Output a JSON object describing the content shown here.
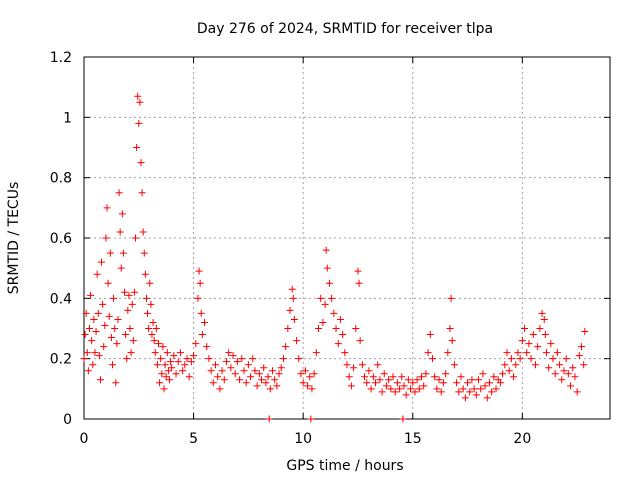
{
  "chart_data": {
    "type": "scatter",
    "title": "Day 276 of 2024, SRMTID for receiver tlpa",
    "xlabel": "GPS time / hours",
    "ylabel": "SRMTID / TECUs",
    "xlim": [
      0,
      24
    ],
    "ylim": [
      0,
      1.2
    ],
    "x_ticks": [
      0,
      5,
      10,
      15,
      20
    ],
    "x_tick_labels": [
      "0",
      "5",
      "10",
      "15",
      "20"
    ],
    "y_ticks": [
      0,
      0.2,
      0.4,
      0.6,
      0.8,
      1.0,
      1.2
    ],
    "y_tick_labels": [
      "0",
      "0.2",
      "0.4",
      "0.6",
      "0.8",
      "1",
      "1.2"
    ],
    "grid": true,
    "marker": "+",
    "color": "#ff0000",
    "series": [
      {
        "name": "SRMTID",
        "points": [
          [
            0.0,
            0.2
          ],
          [
            0.05,
            0.28
          ],
          [
            0.1,
            0.35
          ],
          [
            0.15,
            0.22
          ],
          [
            0.2,
            0.16
          ],
          [
            0.25,
            0.3
          ],
          [
            0.3,
            0.41
          ],
          [
            0.35,
            0.26
          ],
          [
            0.4,
            0.18
          ],
          [
            0.45,
            0.33
          ],
          [
            0.5,
            0.22
          ],
          [
            0.55,
            0.29
          ],
          [
            0.6,
            0.48
          ],
          [
            0.65,
            0.35
          ],
          [
            0.7,
            0.21
          ],
          [
            0.75,
            0.13
          ],
          [
            0.8,
            0.52
          ],
          [
            0.85,
            0.38
          ],
          [
            0.9,
            0.24
          ],
          [
            0.95,
            0.31
          ],
          [
            1.0,
            0.6
          ],
          [
            1.05,
            0.7
          ],
          [
            1.1,
            0.45
          ],
          [
            1.15,
            0.34
          ],
          [
            1.2,
            0.55
          ],
          [
            1.25,
            0.27
          ],
          [
            1.3,
            0.18
          ],
          [
            1.35,
            0.4
          ],
          [
            1.4,
            0.3
          ],
          [
            1.45,
            0.12
          ],
          [
            1.5,
            0.25
          ],
          [
            1.55,
            0.33
          ],
          [
            1.6,
            0.75
          ],
          [
            1.65,
            0.62
          ],
          [
            1.7,
            0.5
          ],
          [
            1.75,
            0.68
          ],
          [
            1.8,
            0.55
          ],
          [
            1.85,
            0.42
          ],
          [
            1.9,
            0.28
          ],
          [
            1.95,
            0.2
          ],
          [
            2.0,
            0.36
          ],
          [
            2.05,
            0.41
          ],
          [
            2.1,
            0.3
          ],
          [
            2.15,
            0.22
          ],
          [
            2.2,
            0.38
          ],
          [
            2.25,
            0.26
          ],
          [
            2.3,
            0.42
          ],
          [
            2.35,
            0.6
          ],
          [
            2.4,
            0.9
          ],
          [
            2.45,
            1.07
          ],
          [
            2.5,
            0.98
          ],
          [
            2.55,
            1.05
          ],
          [
            2.6,
            0.85
          ],
          [
            2.65,
            0.75
          ],
          [
            2.7,
            0.62
          ],
          [
            2.75,
            0.55
          ],
          [
            2.8,
            0.48
          ],
          [
            2.85,
            0.4
          ],
          [
            2.9,
            0.35
          ],
          [
            2.95,
            0.3
          ],
          [
            3.0,
            0.45
          ],
          [
            3.05,
            0.38
          ],
          [
            3.1,
            0.28
          ],
          [
            3.15,
            0.32
          ],
          [
            3.2,
            0.26
          ],
          [
            3.25,
            0.22
          ],
          [
            3.3,
            0.3
          ],
          [
            3.35,
            0.18
          ],
          [
            3.4,
            0.25
          ],
          [
            3.45,
            0.12
          ],
          [
            3.5,
            0.2
          ],
          [
            3.55,
            0.15
          ],
          [
            3.6,
            0.24
          ],
          [
            3.65,
            0.1
          ],
          [
            3.7,
            0.18
          ],
          [
            3.75,
            0.14
          ],
          [
            3.8,
            0.22
          ],
          [
            3.85,
            0.16
          ],
          [
            3.9,
            0.13
          ],
          [
            3.95,
            0.19
          ],
          [
            4.0,
            0.17
          ],
          [
            4.1,
            0.21
          ],
          [
            4.2,
            0.15
          ],
          [
            4.3,
            0.19
          ],
          [
            4.4,
            0.22
          ],
          [
            4.5,
            0.16
          ],
          [
            4.6,
            0.18
          ],
          [
            4.7,
            0.2
          ],
          [
            4.8,
            0.14
          ],
          [
            4.9,
            0.19
          ],
          [
            5.0,
            0.21
          ],
          [
            5.1,
            0.25
          ],
          [
            5.2,
            0.4
          ],
          [
            5.25,
            0.49
          ],
          [
            5.3,
            0.45
          ],
          [
            5.35,
            0.35
          ],
          [
            5.4,
            0.28
          ],
          [
            5.5,
            0.32
          ],
          [
            5.6,
            0.24
          ],
          [
            5.7,
            0.2
          ],
          [
            5.8,
            0.16
          ],
          [
            5.9,
            0.12
          ],
          [
            6.0,
            0.18
          ],
          [
            6.1,
            0.14
          ],
          [
            6.2,
            0.1
          ],
          [
            6.3,
            0.16
          ],
          [
            6.4,
            0.13
          ],
          [
            6.5,
            0.19
          ],
          [
            6.6,
            0.22
          ],
          [
            6.7,
            0.17
          ],
          [
            6.8,
            0.21
          ],
          [
            6.9,
            0.15
          ],
          [
            7.0,
            0.19
          ],
          [
            7.1,
            0.13
          ],
          [
            7.2,
            0.2
          ],
          [
            7.3,
            0.16
          ],
          [
            7.4,
            0.12
          ],
          [
            7.5,
            0.18
          ],
          [
            7.6,
            0.14
          ],
          [
            7.7,
            0.2
          ],
          [
            7.8,
            0.16
          ],
          [
            7.9,
            0.11
          ],
          [
            8.0,
            0.15
          ],
          [
            8.1,
            0.13
          ],
          [
            8.2,
            0.17
          ],
          [
            8.3,
            0.12
          ],
          [
            8.4,
            0.14
          ],
          [
            8.45,
            0.0
          ],
          [
            8.5,
            0.1
          ],
          [
            8.6,
            0.16
          ],
          [
            8.7,
            0.13
          ],
          [
            8.8,
            0.11
          ],
          [
            8.9,
            0.15
          ],
          [
            9.0,
            0.17
          ],
          [
            9.1,
            0.2
          ],
          [
            9.2,
            0.24
          ],
          [
            9.3,
            0.3
          ],
          [
            9.4,
            0.36
          ],
          [
            9.5,
            0.43
          ],
          [
            9.55,
            0.4
          ],
          [
            9.6,
            0.33
          ],
          [
            9.7,
            0.26
          ],
          [
            9.8,
            0.2
          ],
          [
            9.9,
            0.15
          ],
          [
            10.0,
            0.12
          ],
          [
            10.1,
            0.16
          ],
          [
            10.2,
            0.11
          ],
          [
            10.3,
            0.14
          ],
          [
            10.35,
            0.0
          ],
          [
            10.4,
            0.1
          ],
          [
            10.5,
            0.15
          ],
          [
            10.6,
            0.22
          ],
          [
            10.7,
            0.3
          ],
          [
            10.8,
            0.4
          ],
          [
            10.9,
            0.32
          ],
          [
            11.0,
            0.38
          ],
          [
            11.05,
            0.56
          ],
          [
            11.1,
            0.5
          ],
          [
            11.2,
            0.45
          ],
          [
            11.3,
            0.4
          ],
          [
            11.4,
            0.35
          ],
          [
            11.5,
            0.3
          ],
          [
            11.6,
            0.25
          ],
          [
            11.7,
            0.33
          ],
          [
            11.8,
            0.28
          ],
          [
            11.9,
            0.22
          ],
          [
            12.0,
            0.18
          ],
          [
            12.1,
            0.14
          ],
          [
            12.2,
            0.11
          ],
          [
            12.3,
            0.17
          ],
          [
            12.4,
            0.3
          ],
          [
            12.5,
            0.49
          ],
          [
            12.55,
            0.45
          ],
          [
            12.6,
            0.26
          ],
          [
            12.7,
            0.18
          ],
          [
            12.8,
            0.14
          ],
          [
            12.9,
            0.12
          ],
          [
            13.0,
            0.16
          ],
          [
            13.1,
            0.1
          ],
          [
            13.2,
            0.14
          ],
          [
            13.3,
            0.12
          ],
          [
            13.4,
            0.18
          ],
          [
            13.5,
            0.13
          ],
          [
            13.6,
            0.09
          ],
          [
            13.7,
            0.15
          ],
          [
            13.8,
            0.11
          ],
          [
            13.9,
            0.13
          ],
          [
            14.0,
            0.1
          ],
          [
            14.1,
            0.14
          ],
          [
            14.2,
            0.09
          ],
          [
            14.3,
            0.12
          ],
          [
            14.4,
            0.1
          ],
          [
            14.5,
            0.14
          ],
          [
            14.55,
            0.0
          ],
          [
            14.6,
            0.11
          ],
          [
            14.7,
            0.08
          ],
          [
            14.8,
            0.13
          ],
          [
            14.9,
            0.1
          ],
          [
            15.0,
            0.12
          ],
          [
            15.1,
            0.09
          ],
          [
            15.2,
            0.13
          ],
          [
            15.3,
            0.1
          ],
          [
            15.4,
            0.14
          ],
          [
            15.5,
            0.11
          ],
          [
            15.6,
            0.15
          ],
          [
            15.7,
            0.22
          ],
          [
            15.8,
            0.28
          ],
          [
            15.9,
            0.2
          ],
          [
            16.0,
            0.14
          ],
          [
            16.1,
            0.1
          ],
          [
            16.2,
            0.13
          ],
          [
            16.3,
            0.09
          ],
          [
            16.4,
            0.12
          ],
          [
            16.5,
            0.15
          ],
          [
            16.6,
            0.22
          ],
          [
            16.7,
            0.3
          ],
          [
            16.75,
            0.4
          ],
          [
            16.8,
            0.26
          ],
          [
            16.9,
            0.18
          ],
          [
            17.0,
            0.12
          ],
          [
            17.1,
            0.09
          ],
          [
            17.2,
            0.14
          ],
          [
            17.3,
            0.1
          ],
          [
            17.4,
            0.07
          ],
          [
            17.5,
            0.12
          ],
          [
            17.6,
            0.09
          ],
          [
            17.7,
            0.13
          ],
          [
            17.8,
            0.1
          ],
          [
            17.9,
            0.08
          ],
          [
            18.0,
            0.13
          ],
          [
            18.1,
            0.1
          ],
          [
            18.2,
            0.15
          ],
          [
            18.3,
            0.11
          ],
          [
            18.4,
            0.07
          ],
          [
            18.5,
            0.12
          ],
          [
            18.6,
            0.09
          ],
          [
            18.7,
            0.14
          ],
          [
            18.8,
            0.1
          ],
          [
            18.9,
            0.13
          ],
          [
            19.0,
            0.12
          ],
          [
            19.1,
            0.15
          ],
          [
            19.2,
            0.18
          ],
          [
            19.3,
            0.22
          ],
          [
            19.4,
            0.16
          ],
          [
            19.5,
            0.2
          ],
          [
            19.6,
            0.14
          ],
          [
            19.7,
            0.18
          ],
          [
            19.8,
            0.22
          ],
          [
            19.9,
            0.2
          ],
          [
            20.0,
            0.26
          ],
          [
            20.1,
            0.3
          ],
          [
            20.2,
            0.22
          ],
          [
            20.3,
            0.25
          ],
          [
            20.4,
            0.2
          ],
          [
            20.5,
            0.28
          ],
          [
            20.6,
            0.18
          ],
          [
            20.7,
            0.24
          ],
          [
            20.8,
            0.3
          ],
          [
            20.9,
            0.35
          ],
          [
            21.0,
            0.33
          ],
          [
            21.05,
            0.28
          ],
          [
            21.1,
            0.22
          ],
          [
            21.2,
            0.17
          ],
          [
            21.3,
            0.25
          ],
          [
            21.4,
            0.2
          ],
          [
            21.5,
            0.15
          ],
          [
            21.6,
            0.22
          ],
          [
            21.7,
            0.18
          ],
          [
            21.8,
            0.13
          ],
          [
            21.9,
            0.16
          ],
          [
            22.0,
            0.2
          ],
          [
            22.1,
            0.15
          ],
          [
            22.2,
            0.11
          ],
          [
            22.3,
            0.17
          ],
          [
            22.4,
            0.14
          ],
          [
            22.5,
            0.09
          ],
          [
            22.6,
            0.21
          ],
          [
            22.7,
            0.24
          ],
          [
            22.8,
            0.18
          ],
          [
            22.85,
            0.29
          ]
        ]
      }
    ]
  }
}
